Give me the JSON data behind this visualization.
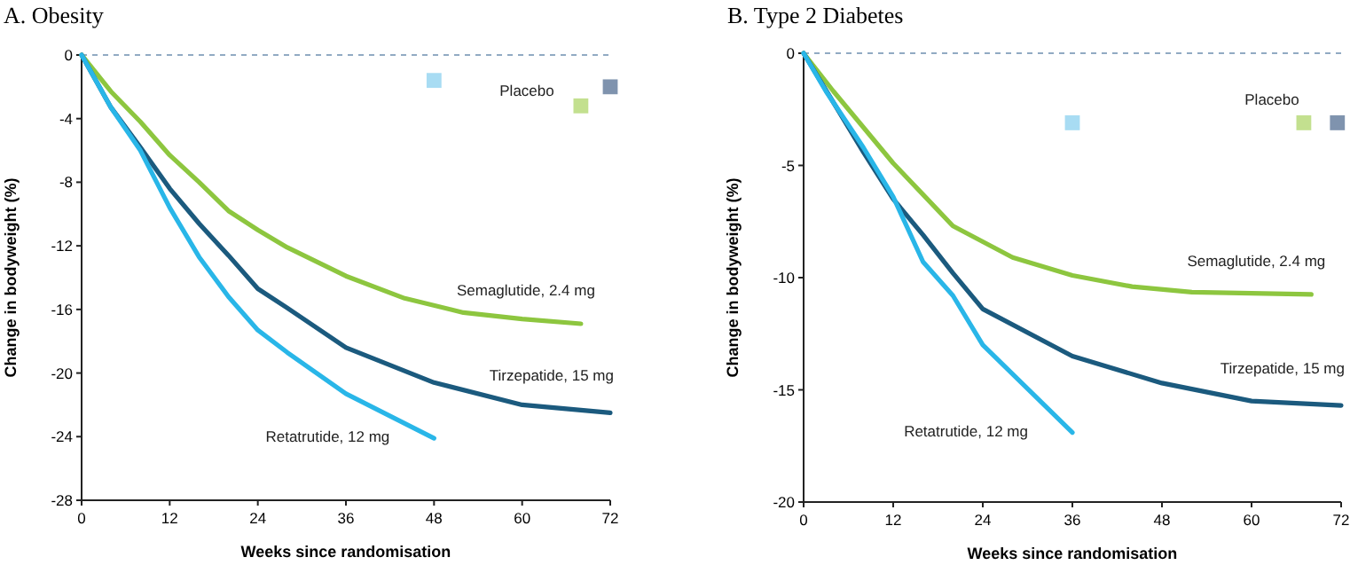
{
  "chart_data": [
    {
      "type": "line",
      "title": "A. Obesity",
      "xlabel": "Weeks since randomisation",
      "ylabel": "Change in bodyweight (%)",
      "xlim": [
        0,
        72
      ],
      "xticks": [
        0,
        12,
        24,
        36,
        48,
        60,
        72
      ],
      "ylim": [
        -28,
        0
      ],
      "yticks": [
        -28,
        -24,
        -20,
        -16,
        -12,
        -8,
        -4,
        0
      ],
      "grid": false,
      "marker": "none",
      "line_style": "solid",
      "ref_lines": [
        {
          "axis": "y",
          "value": 0,
          "color": "#6d8fb0",
          "line_style": "dashed"
        }
      ],
      "annotations": [
        "Placebo"
      ],
      "series": [
        {
          "name": "Semaglutide, 2.4 mg",
          "color": "#8dc63f",
          "x": [
            0,
            4,
            8,
            12,
            16,
            20,
            24,
            28,
            36,
            44,
            52,
            60,
            68
          ],
          "values": [
            0,
            -2.3,
            -4.2,
            -6.3,
            -8,
            -9.8,
            -11,
            -12.1,
            -13.9,
            -15.3,
            -16.2,
            -16.6,
            -16.9
          ]
        },
        {
          "name": "Tirzepatide, 15 mg",
          "color": "#1b5a7e",
          "x": [
            0,
            4,
            8,
            12,
            16,
            20,
            24,
            28,
            36,
            48,
            60,
            72
          ],
          "values": [
            0,
            -3.3,
            -5.8,
            -8.4,
            -10.6,
            -12.6,
            -14.7,
            -15.9,
            -18.4,
            -20.6,
            -22,
            -22.5
          ]
        },
        {
          "name": "Retatrutide, 12 mg",
          "color": "#29b6e8",
          "x": [
            0,
            4,
            8,
            12,
            16,
            20,
            24,
            28,
            36,
            48
          ],
          "values": [
            0,
            -3.3,
            -6,
            -9.6,
            -12.7,
            -15.2,
            -17.3,
            -18.7,
            -21.3,
            -24.1
          ]
        },
        {
          "type": "scatter",
          "marker": "square",
          "color": "#a8dcf3",
          "x": [
            48
          ],
          "values": [
            -1.6
          ]
        },
        {
          "type": "scatter",
          "marker": "square",
          "color": "#c3e08f",
          "x": [
            68
          ],
          "values": [
            -3.2
          ]
        },
        {
          "type": "scatter",
          "marker": "square",
          "color": "#7f93ae",
          "x": [
            72
          ],
          "values": [
            -2
          ]
        }
      ]
    },
    {
      "type": "line",
      "title": "B. Type 2 Diabetes",
      "xlabel": "Weeks since randomisation",
      "ylabel": "Change in bodyweight (%)",
      "xlim": [
        0,
        72
      ],
      "xticks": [
        0,
        12,
        24,
        36,
        48,
        60,
        72
      ],
      "ylim": [
        -20,
        0
      ],
      "yticks": [
        -20,
        -15,
        -10,
        -5,
        0
      ],
      "grid": false,
      "marker": "none",
      "line_style": "solid",
      "ref_lines": [
        {
          "axis": "y",
          "value": 0,
          "color": "#6d8fb0",
          "line_style": "dashed"
        }
      ],
      "annotations": [
        "Placebo"
      ],
      "series": [
        {
          "name": "Semaglutide, 2.4 mg",
          "color": "#8dc63f",
          "x": [
            0,
            4,
            8,
            12,
            16,
            20,
            24,
            28,
            36,
            44,
            52,
            68
          ],
          "values": [
            0,
            -1.7,
            -3.3,
            -4.9,
            -6.3,
            -7.7,
            -8.4,
            -9.1,
            -9.9,
            -10.4,
            -10.65,
            -10.75
          ]
        },
        {
          "name": "Tirzepatide, 15 mg",
          "color": "#1b5a7e",
          "x": [
            0,
            4,
            8,
            12,
            16,
            20,
            24,
            36,
            48,
            60,
            72
          ],
          "values": [
            0,
            -2.2,
            -4.4,
            -6.5,
            -8.1,
            -9.8,
            -11.4,
            -13.5,
            -14.7,
            -15.5,
            -15.7
          ]
        },
        {
          "name": "Retatrutide, 12 mg",
          "color": "#29b6e8",
          "x": [
            0,
            3,
            8,
            12,
            16,
            20,
            24,
            36
          ],
          "values": [
            0,
            -1.7,
            -4.2,
            -6.4,
            -9.3,
            -10.8,
            -13,
            -16.9
          ]
        },
        {
          "type": "scatter",
          "marker": "square",
          "color": "#a8dcf3",
          "x": [
            36
          ],
          "values": [
            -3.1
          ]
        },
        {
          "type": "scatter",
          "marker": "square",
          "color": "#c3e08f",
          "x": [
            67
          ],
          "values": [
            -3.1
          ]
        },
        {
          "type": "scatter",
          "marker": "square",
          "color": "#7f93ae",
          "x": [
            71.5
          ],
          "values": [
            -3.1
          ]
        }
      ]
    }
  ]
}
